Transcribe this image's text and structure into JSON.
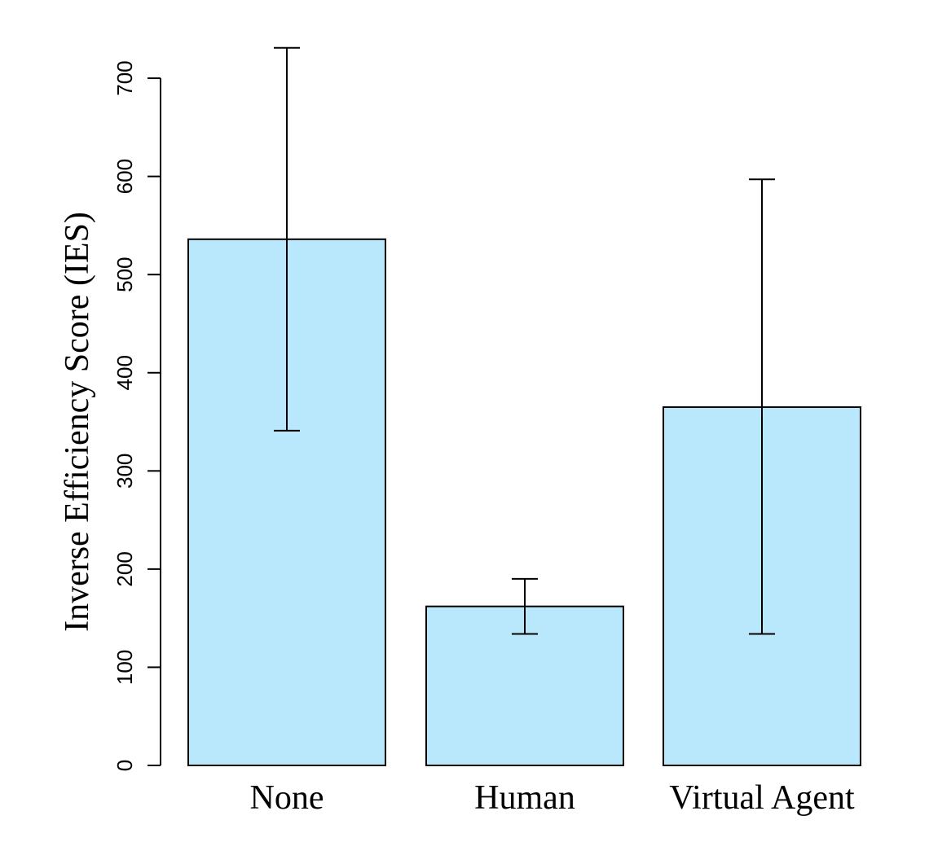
{
  "chart_data": {
    "type": "bar",
    "categories": [
      "None",
      "Human",
      "Virtual Agent"
    ],
    "values": [
      536,
      162,
      365
    ],
    "error_bars": [
      {
        "lower": 341,
        "upper": 731
      },
      {
        "lower": 134,
        "upper": 190
      },
      {
        "lower": 134,
        "upper": 597
      }
    ],
    "ylabel": "Inverse Efficiency Score (IES)",
    "xlabel": "",
    "title": "",
    "ylim": [
      0,
      730
    ],
    "yticks": [
      0,
      100,
      200,
      300,
      400,
      500,
      600,
      700
    ],
    "grid": false,
    "bar_color": "#b9e7fb",
    "bar_stroke": "#000000"
  }
}
